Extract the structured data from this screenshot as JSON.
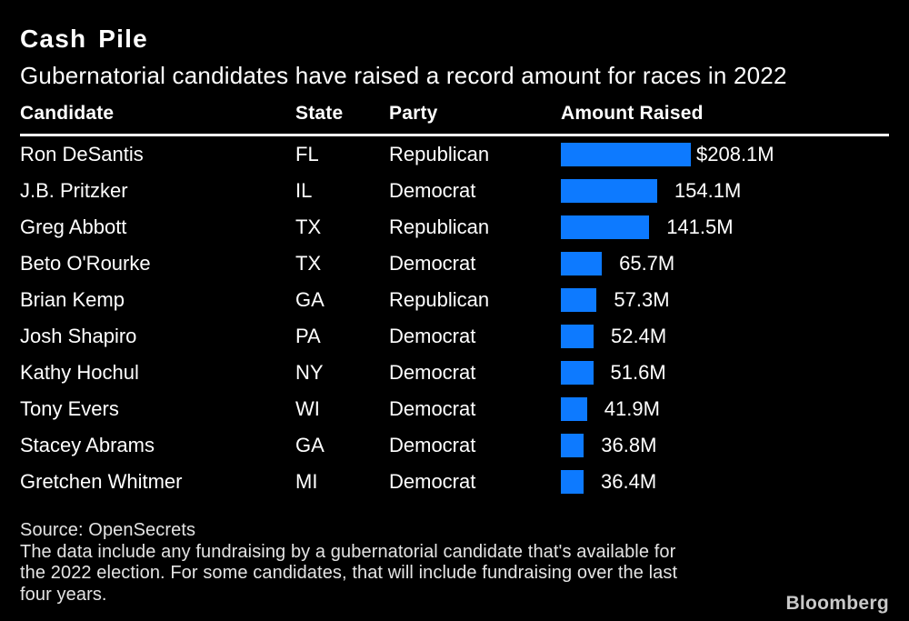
{
  "accent_color": "#0d7aff",
  "background_color": "#000000",
  "text_color": "#ffffff",
  "header": {
    "title": "Cash Pile",
    "subtitle": "Gubernatorial candidates have raised a record amount for races in 2022"
  },
  "table": {
    "columns": [
      "Candidate",
      "State",
      "Party",
      "Amount Raised"
    ],
    "rows": [
      {
        "candidate": "Ron DeSantis",
        "state": "FL",
        "party": "Republican",
        "value": 208.1,
        "label": "$208.1M"
      },
      {
        "candidate": "J.B. Pritzker",
        "state": "IL",
        "party": "Democrat",
        "value": 154.1,
        "label": "154.1M"
      },
      {
        "candidate": "Greg Abbott",
        "state": "TX",
        "party": "Republican",
        "value": 141.5,
        "label": "141.5M"
      },
      {
        "candidate": "Beto O'Rourke",
        "state": "TX",
        "party": "Democrat",
        "value": 65.7,
        "label": "65.7M"
      },
      {
        "candidate": "Brian Kemp",
        "state": "GA",
        "party": "Republican",
        "value": 57.3,
        "label": "57.3M"
      },
      {
        "candidate": "Josh Shapiro",
        "state": "PA",
        "party": "Democrat",
        "value": 52.4,
        "label": "52.4M"
      },
      {
        "candidate": "Kathy Hochul",
        "state": "NY",
        "party": "Democrat",
        "value": 51.6,
        "label": "51.6M"
      },
      {
        "candidate": "Tony Evers",
        "state": "WI",
        "party": "Democrat",
        "value": 41.9,
        "label": "41.9M"
      },
      {
        "candidate": "Stacey Abrams",
        "state": "GA",
        "party": "Democrat",
        "value": 36.8,
        "label": "36.8M"
      },
      {
        "candidate": "Gretchen Whitmer",
        "state": "MI",
        "party": "Democrat",
        "value": 36.4,
        "label": "36.4M"
      }
    ]
  },
  "chart_data": {
    "type": "bar",
    "orientation": "horizontal",
    "title": "Cash Pile",
    "subtitle": "Gubernatorial candidates have raised a record amount for races in 2022",
    "categories": [
      "Ron DeSantis",
      "J.B. Pritzker",
      "Greg Abbott",
      "Beto O'Rourke",
      "Brian Kemp",
      "Josh Shapiro",
      "Kathy Hochul",
      "Tony Evers",
      "Stacey Abrams",
      "Gretchen Whitmer"
    ],
    "values": [
      208.1,
      154.1,
      141.5,
      65.7,
      57.3,
      52.4,
      51.6,
      41.9,
      36.8,
      36.4
    ],
    "value_labels": [
      "$208.1M",
      "154.1M",
      "141.5M",
      "65.7M",
      "57.3M",
      "52.4M",
      "51.6M",
      "41.9M",
      "36.8M",
      "36.4M"
    ],
    "series_label": "Amount Raised",
    "unit": "millions USD",
    "xlim": [
      0,
      208.1
    ],
    "grid": false,
    "legend": false,
    "bar_color": "#0d7aff"
  },
  "footer": {
    "source": "Source: OpenSecrets",
    "note_lines": [
      "The data include any fundraising by a gubernatorial candidate that's available for",
      "the 2022 election. For some candidates, that will include fundraising over the last",
      "four years."
    ],
    "brand": "Bloomberg"
  }
}
